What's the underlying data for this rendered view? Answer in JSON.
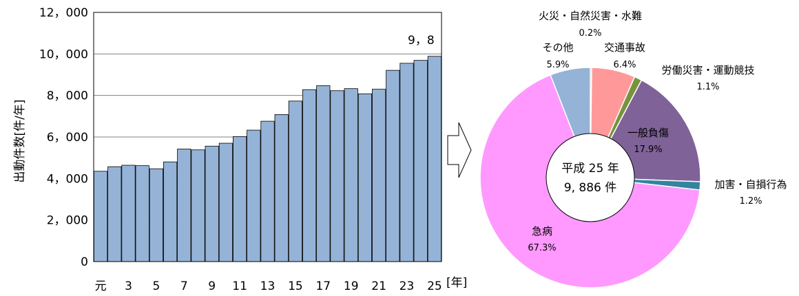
{
  "chart_data": [
    {
      "type": "bar",
      "ylabel": "出動件数[件/年]",
      "xunit": "[年]",
      "ylim": [
        0,
        12000
      ],
      "y_ticks": [
        "0",
        "2，000",
        "4，000",
        "6，000",
        "8，000",
        "10，000",
        "12，000"
      ],
      "grid": "horizontal",
      "x_tick_labels": [
        "元",
        "3",
        "5",
        "7",
        "9",
        "11",
        "13",
        "15",
        "17",
        "19",
        "21",
        "23",
        "25"
      ],
      "categories": [
        "元",
        "2",
        "3",
        "4",
        "5",
        "6",
        "7",
        "8",
        "9",
        "10",
        "11",
        "12",
        "13",
        "14",
        "15",
        "16",
        "17",
        "18",
        "19",
        "20",
        "21",
        "22",
        "23",
        "24",
        "25"
      ],
      "values": [
        4350,
        4570,
        4640,
        4620,
        4470,
        4800,
        5420,
        5380,
        5560,
        5700,
        6020,
        6330,
        6760,
        7080,
        7730,
        8280,
        8470,
        8230,
        8330,
        8080,
        8300,
        9210,
        9550,
        9690,
        9886
      ],
      "annotation": "9，8",
      "bar_color": "#95b3d7"
    },
    {
      "type": "pie",
      "center_label": [
        "平成 25 年",
        "9, 886 件"
      ],
      "slices": [
        {
          "name": "火災・自然災害・水難",
          "value": 0.2,
          "label": "0.2%",
          "color": "#4f6228"
        },
        {
          "name": "交通事故",
          "value": 6.4,
          "label": "6.4%",
          "color": "#ff9999"
        },
        {
          "name": "労働災害・運動競技",
          "value": 1.1,
          "label": "1.1%",
          "color": "#77933c"
        },
        {
          "name": "一般負傷",
          "value": 17.9,
          "label": "17.9%",
          "color": "#7f6298"
        },
        {
          "name": "加害・自損行為",
          "value": 1.2,
          "label": "1.2%",
          "color": "#31859c"
        },
        {
          "name": "急病",
          "value": 67.3,
          "label": "67.3%",
          "color": "#ff99ff"
        },
        {
          "name": "その他",
          "value": 5.9,
          "label": "5.9%",
          "color": "#95b3d7"
        }
      ]
    }
  ]
}
